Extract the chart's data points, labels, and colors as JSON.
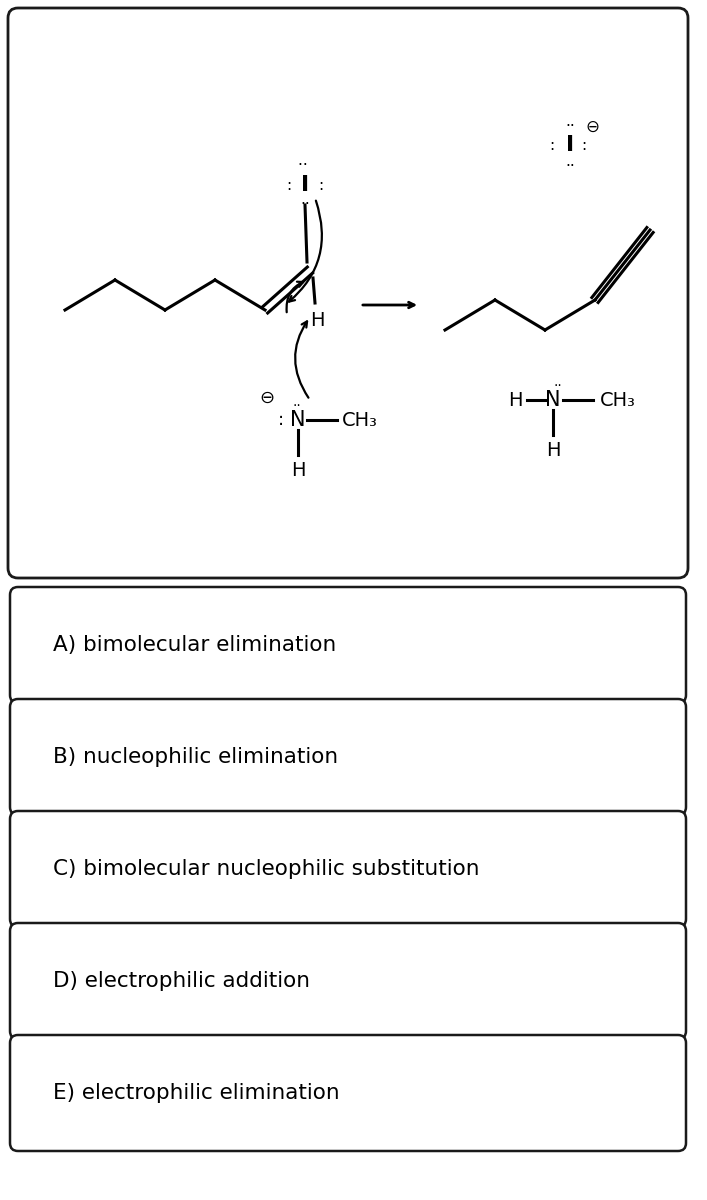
{
  "bg_color": "#ffffff",
  "border_color": "#1a1a1a",
  "options": [
    "A) bimolecular elimination",
    "B) nucleophilic elimination",
    "C) bimolecular nucleophilic substitution",
    "D) electrophilic addition",
    "E) electrophilic elimination"
  ],
  "options_fontsize": 15.5
}
